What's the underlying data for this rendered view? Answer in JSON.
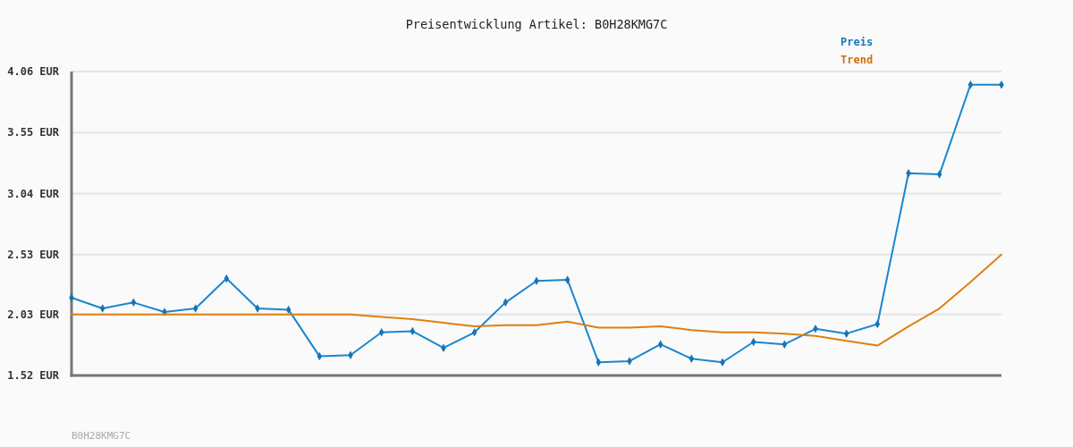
{
  "chart_data": {
    "type": "line",
    "title": "Preisentwicklung Artikel: B0H28KMG7C",
    "categories": [
      null,
      null,
      null,
      null,
      null,
      null,
      null,
      null,
      null,
      null,
      null,
      null,
      null,
      null,
      null,
      null,
      null,
      null,
      null,
      null,
      null,
      null,
      null,
      null,
      null,
      null,
      null,
      null,
      null,
      null,
      null
    ],
    "series": [
      {
        "name": "Preis",
        "color": "#1a86d0",
        "marker": "diamond",
        "values": [
          2.17,
          2.08,
          2.13,
          2.05,
          2.08,
          2.33,
          2.08,
          2.07,
          1.68,
          1.69,
          1.88,
          1.89,
          1.75,
          1.88,
          2.13,
          2.31,
          2.32,
          1.63,
          1.64,
          1.78,
          1.66,
          1.63,
          1.8,
          1.78,
          1.91,
          1.87,
          1.95,
          3.21,
          3.2,
          3.95,
          3.95
        ]
      },
      {
        "name": "Trend",
        "color": "#e07f10",
        "values": [
          2.03,
          2.03,
          2.03,
          2.03,
          2.03,
          2.03,
          2.03,
          2.03,
          2.03,
          2.03,
          2.01,
          1.99,
          1.96,
          1.93,
          1.94,
          1.94,
          1.97,
          1.92,
          1.92,
          1.93,
          1.9,
          1.88,
          1.88,
          1.87,
          1.85,
          1.81,
          1.77,
          1.93,
          2.08,
          2.3,
          2.53
        ]
      }
    ],
    "ylim": [
      1.52,
      4.06
    ],
    "yticks": [
      {
        "value": 1.52,
        "label": "1.52 EUR"
      },
      {
        "value": 2.03,
        "label": "2.03 EUR"
      },
      {
        "value": 2.53,
        "label": "2.53 EUR"
      },
      {
        "value": 3.04,
        "label": "3.04 EUR"
      },
      {
        "value": 3.55,
        "label": "3.55 EUR"
      },
      {
        "value": 4.06,
        "label": "4.06 EUR"
      }
    ],
    "grid": "y",
    "legend": "top right",
    "tick_labels": "y",
    "annotations": [
      "B0H28KMG7C"
    ]
  }
}
